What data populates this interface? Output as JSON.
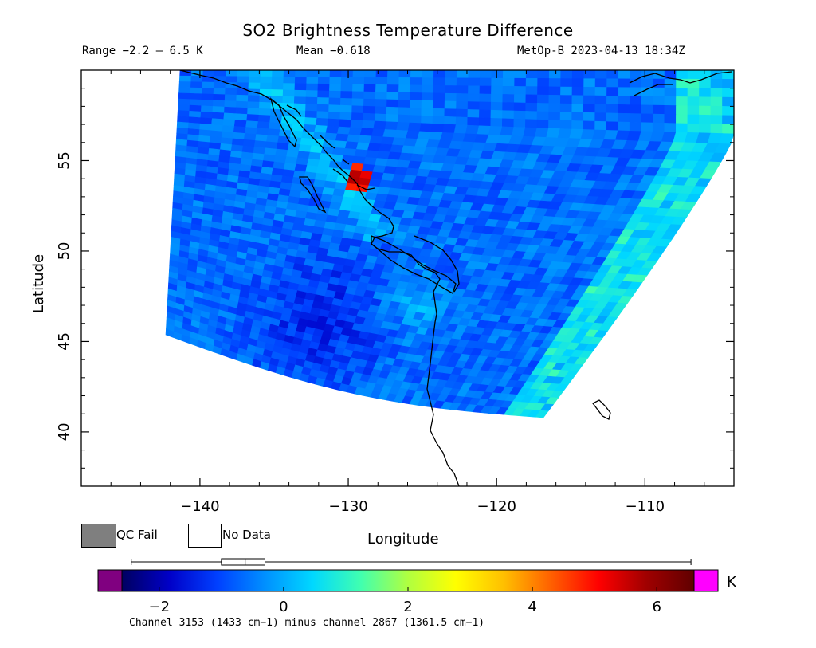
{
  "title": "SO2 Brightness Temperature Difference",
  "header": {
    "range": "Range −2.2 – 6.5 K",
    "mean": "Mean −0.618",
    "satellite_time": "MetOp-B 2023-04-13 18:34Z"
  },
  "chart_data": {
    "type": "heatmap",
    "map": "swath over North Pacific / Pacific Northwest coast",
    "xlabel": "Longitude",
    "ylabel": "Latitude",
    "xlim": [
      -148,
      -104
    ],
    "ylim": [
      37,
      60
    ],
    "x_ticks": [
      "−140",
      "−130",
      "−120",
      "−110"
    ],
    "x_tick_values": [
      -140,
      -130,
      -120,
      -110
    ],
    "y_ticks": [
      "40",
      "45",
      "50",
      "55"
    ],
    "y_tick_values": [
      40,
      45,
      50,
      55
    ],
    "value_range": [
      -2.2,
      6.5
    ],
    "mean": -0.618,
    "hotspot": {
      "lon": -129.3,
      "lat": 54.0,
      "value": 6.5
    }
  },
  "legend": {
    "qc_fail": "QC Fail",
    "no_data": "No Data",
    "qc_fail_color": "#7f7f7f",
    "no_data_color": "#ffffff"
  },
  "colorbar": {
    "unit": "K",
    "min": -2.6,
    "max": 6.6,
    "ticks": [
      "−2",
      "0",
      "2",
      "4",
      "6"
    ],
    "tick_values": [
      -2,
      0,
      2,
      4,
      6
    ],
    "under_color": "#800080",
    "over_color": "#ff00ff",
    "colormap": [
      "#000060",
      "#0000c8",
      "#0040ff",
      "#0090ff",
      "#00d8ff",
      "#40ffb0",
      "#b0ff40",
      "#ffff00",
      "#ffc000",
      "#ff6000",
      "#ff0000",
      "#a00000",
      "#600000"
    ]
  },
  "footnote": "Channel 3153 (1433 cm−1) minus channel 2867 (1361.5 cm−1)"
}
